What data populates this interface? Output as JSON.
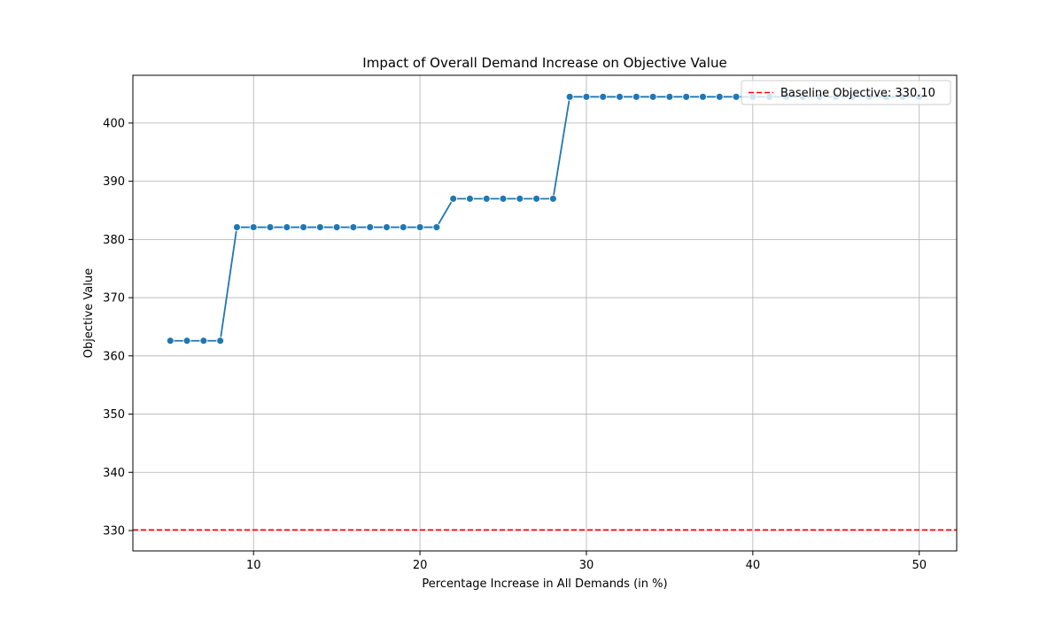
{
  "chart_data": {
    "type": "line",
    "title": "Impact of Overall Demand Increase on Objective Value",
    "xlabel": "Percentage Increase in All Demands (in %)",
    "ylabel": "Objective Value",
    "xlim": [
      2.75,
      52.25
    ],
    "ylim": [
      326.5,
      408.2
    ],
    "xticks": [
      10,
      20,
      30,
      40,
      50
    ],
    "yticks": [
      330,
      340,
      350,
      360,
      370,
      380,
      390,
      400
    ],
    "grid": true,
    "legend_position": "top-right",
    "series": [
      {
        "color": "#1f77b4",
        "marker": "circle",
        "x": [
          5,
          6,
          7,
          8,
          9,
          10,
          11,
          12,
          13,
          14,
          15,
          16,
          17,
          18,
          19,
          20,
          21,
          22,
          23,
          24,
          25,
          26,
          27,
          28,
          29,
          30,
          31,
          32,
          33,
          34,
          35,
          36,
          37,
          38,
          39,
          40,
          41,
          42,
          43,
          44,
          45,
          46,
          47,
          48,
          49,
          50
        ],
        "values": [
          362.6,
          362.6,
          362.6,
          362.6,
          382.1,
          382.1,
          382.1,
          382.1,
          382.1,
          382.1,
          382.1,
          382.1,
          382.1,
          382.1,
          382.1,
          382.1,
          382.1,
          387.0,
          387.0,
          387.0,
          387.0,
          387.0,
          387.0,
          387.0,
          404.5,
          404.5,
          404.5,
          404.5,
          404.5,
          404.5,
          404.5,
          404.5,
          404.5,
          404.5,
          404.5,
          404.5,
          404.5,
          404.5,
          404.5,
          404.5,
          404.5,
          404.5,
          404.5,
          404.5,
          404.5,
          404.5
        ]
      }
    ],
    "reference_lines": [
      {
        "name": "Baseline Objective: 330.10",
        "y": 330.1,
        "color": "#ff0000",
        "style": "dashed"
      }
    ]
  }
}
